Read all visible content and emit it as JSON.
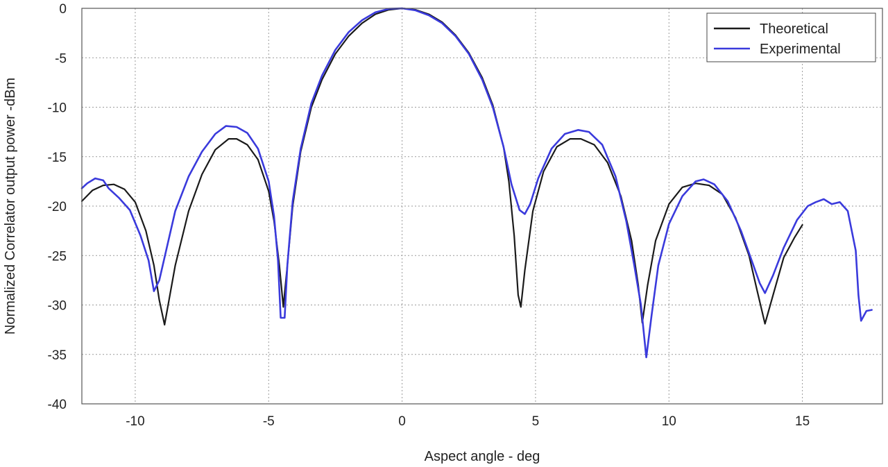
{
  "chart_data": {
    "type": "line",
    "title": "",
    "xlabel": "Aspect angle - deg",
    "ylabel": "Normalized Correlator output power -dBm",
    "xlim": [
      -12,
      18
    ],
    "ylim": [
      -40,
      0
    ],
    "xticks": [
      -10,
      -5,
      0,
      5,
      10,
      15
    ],
    "yticks": [
      0,
      -5,
      -10,
      -15,
      -20,
      -25,
      -30,
      -35,
      -40
    ],
    "grid": true,
    "legend_position": "top-right",
    "series": [
      {
        "name": "Theoretical",
        "color": "#1a1a1a",
        "points": [
          [
            -12,
            -19.5
          ],
          [
            -11.6,
            -18.4
          ],
          [
            -11.2,
            -17.9
          ],
          [
            -10.8,
            -17.8
          ],
          [
            -10.4,
            -18.3
          ],
          [
            -10.0,
            -19.6
          ],
          [
            -9.6,
            -22.5
          ],
          [
            -9.3,
            -26.0
          ],
          [
            -9.1,
            -29.5
          ],
          [
            -8.9,
            -32.0
          ],
          [
            -8.7,
            -29.0
          ],
          [
            -8.5,
            -26.0
          ],
          [
            -8.0,
            -20.5
          ],
          [
            -7.5,
            -16.8
          ],
          [
            -7.0,
            -14.3
          ],
          [
            -6.5,
            -13.2
          ],
          [
            -6.2,
            -13.2
          ],
          [
            -5.8,
            -13.8
          ],
          [
            -5.4,
            -15.3
          ],
          [
            -5.0,
            -18.5
          ],
          [
            -4.8,
            -21.5
          ],
          [
            -4.6,
            -26.0
          ],
          [
            -4.45,
            -30.2
          ],
          [
            -4.3,
            -26.0
          ],
          [
            -4.1,
            -20.0
          ],
          [
            -3.8,
            -14.5
          ],
          [
            -3.4,
            -10.0
          ],
          [
            -3.0,
            -7.2
          ],
          [
            -2.5,
            -4.6
          ],
          [
            -2.0,
            -2.8
          ],
          [
            -1.5,
            -1.5
          ],
          [
            -1.0,
            -0.6
          ],
          [
            -0.5,
            -0.15
          ],
          [
            0.0,
            0.0
          ],
          [
            0.5,
            -0.15
          ],
          [
            1.0,
            -0.6
          ],
          [
            1.5,
            -1.4
          ],
          [
            2.0,
            -2.7
          ],
          [
            2.5,
            -4.5
          ],
          [
            3.0,
            -7.0
          ],
          [
            3.4,
            -9.8
          ],
          [
            3.8,
            -14.0
          ],
          [
            4.0,
            -17.5
          ],
          [
            4.2,
            -23.0
          ],
          [
            4.35,
            -29.0
          ],
          [
            4.45,
            -30.2
          ],
          [
            4.6,
            -26.5
          ],
          [
            4.9,
            -20.5
          ],
          [
            5.3,
            -16.5
          ],
          [
            5.8,
            -14.0
          ],
          [
            6.3,
            -13.2
          ],
          [
            6.7,
            -13.2
          ],
          [
            7.2,
            -13.8
          ],
          [
            7.7,
            -15.6
          ],
          [
            8.2,
            -19.0
          ],
          [
            8.6,
            -23.5
          ],
          [
            8.85,
            -28.0
          ],
          [
            9.0,
            -31.8
          ],
          [
            9.2,
            -28.0
          ],
          [
            9.5,
            -23.5
          ],
          [
            10.0,
            -19.8
          ],
          [
            10.5,
            -18.1
          ],
          [
            11.0,
            -17.7
          ],
          [
            11.5,
            -17.9
          ],
          [
            12.0,
            -18.8
          ],
          [
            12.5,
            -21.2
          ],
          [
            13.0,
            -25.0
          ],
          [
            13.3,
            -28.5
          ],
          [
            13.6,
            -31.9
          ],
          [
            13.9,
            -29.0
          ],
          [
            14.3,
            -25.2
          ],
          [
            14.7,
            -23.2
          ],
          [
            15.0,
            -21.9
          ]
        ]
      },
      {
        "name": "Experimental",
        "color": "#3a3adc",
        "points": [
          [
            -12,
            -18.2
          ],
          [
            -11.8,
            -17.7
          ],
          [
            -11.5,
            -17.2
          ],
          [
            -11.2,
            -17.4
          ],
          [
            -11.0,
            -18.2
          ],
          [
            -10.6,
            -19.2
          ],
          [
            -10.2,
            -20.4
          ],
          [
            -9.8,
            -23.0
          ],
          [
            -9.5,
            -25.5
          ],
          [
            -9.3,
            -28.6
          ],
          [
            -9.1,
            -27.5
          ],
          [
            -8.8,
            -24.0
          ],
          [
            -8.5,
            -20.5
          ],
          [
            -8.0,
            -17.0
          ],
          [
            -7.5,
            -14.5
          ],
          [
            -7.0,
            -12.7
          ],
          [
            -6.6,
            -11.9
          ],
          [
            -6.2,
            -12.0
          ],
          [
            -5.8,
            -12.6
          ],
          [
            -5.4,
            -14.2
          ],
          [
            -5.0,
            -17.5
          ],
          [
            -4.8,
            -21.0
          ],
          [
            -4.65,
            -25.5
          ],
          [
            -4.55,
            -31.3
          ],
          [
            -4.4,
            -31.3
          ],
          [
            -4.3,
            -26.0
          ],
          [
            -4.1,
            -19.5
          ],
          [
            -3.8,
            -14.2
          ],
          [
            -3.4,
            -9.6
          ],
          [
            -3.0,
            -6.8
          ],
          [
            -2.5,
            -4.2
          ],
          [
            -2.0,
            -2.4
          ],
          [
            -1.5,
            -1.2
          ],
          [
            -1.0,
            -0.4
          ],
          [
            -0.5,
            -0.05
          ],
          [
            0.0,
            0.0
          ],
          [
            0.5,
            -0.2
          ],
          [
            1.0,
            -0.7
          ],
          [
            1.5,
            -1.5
          ],
          [
            2.0,
            -2.8
          ],
          [
            2.5,
            -4.6
          ],
          [
            3.0,
            -7.2
          ],
          [
            3.4,
            -10.0
          ],
          [
            3.8,
            -14.0
          ],
          [
            4.1,
            -17.8
          ],
          [
            4.4,
            -20.4
          ],
          [
            4.6,
            -20.8
          ],
          [
            4.8,
            -19.8
          ],
          [
            5.1,
            -17.2
          ],
          [
            5.6,
            -14.2
          ],
          [
            6.1,
            -12.7
          ],
          [
            6.6,
            -12.3
          ],
          [
            7.0,
            -12.5
          ],
          [
            7.5,
            -13.8
          ],
          [
            8.0,
            -17.0
          ],
          [
            8.4,
            -21.5
          ],
          [
            8.7,
            -26.0
          ],
          [
            8.95,
            -30.0
          ],
          [
            9.15,
            -35.3
          ],
          [
            9.35,
            -31.0
          ],
          [
            9.6,
            -26.0
          ],
          [
            10.0,
            -21.8
          ],
          [
            10.5,
            -19.0
          ],
          [
            11.0,
            -17.5
          ],
          [
            11.3,
            -17.3
          ],
          [
            11.7,
            -17.8
          ],
          [
            12.2,
            -19.5
          ],
          [
            12.7,
            -22.5
          ],
          [
            13.1,
            -25.5
          ],
          [
            13.4,
            -27.8
          ],
          [
            13.6,
            -28.8
          ],
          [
            13.9,
            -27.0
          ],
          [
            14.3,
            -24.2
          ],
          [
            14.8,
            -21.4
          ],
          [
            15.2,
            -20.0
          ],
          [
            15.5,
            -19.6
          ],
          [
            15.8,
            -19.3
          ],
          [
            16.1,
            -19.8
          ],
          [
            16.4,
            -19.6
          ],
          [
            16.7,
            -20.5
          ],
          [
            17.0,
            -24.5
          ],
          [
            17.1,
            -29.0
          ],
          [
            17.2,
            -31.6
          ],
          [
            17.4,
            -30.6
          ],
          [
            17.6,
            -30.5
          ]
        ]
      }
    ]
  }
}
